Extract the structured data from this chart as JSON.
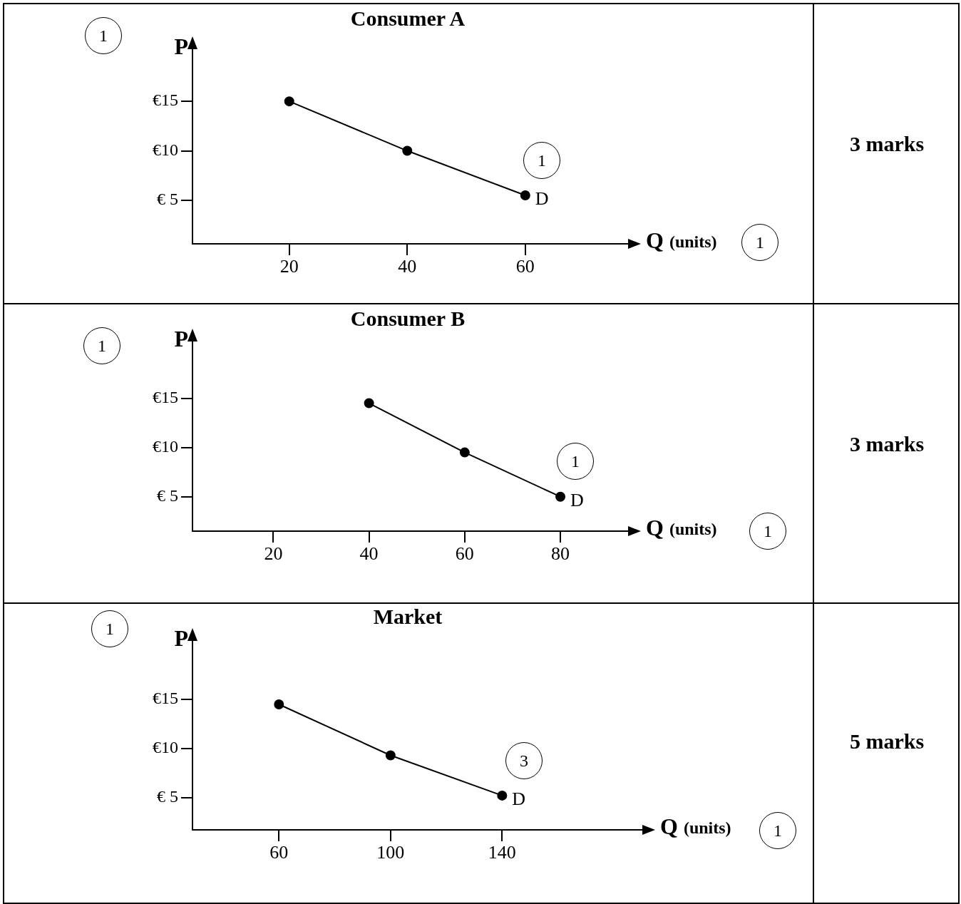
{
  "chart_data": [
    {
      "type": "line",
      "title": "Consumer A",
      "xlabel": "Q (units)",
      "ylabel": "P",
      "x": [
        20,
        40,
        60
      ],
      "series": [
        {
          "color": "#000000",
          "values": [
            15,
            10,
            5.5
          ]
        }
      ],
      "xlim": [
        3.6,
        77.3
      ],
      "ylim": [
        0.6,
        20.2
      ],
      "xticks": [
        20,
        40,
        60
      ],
      "yticks": [
        {
          "value": 5,
          "label": "€ 5"
        },
        {
          "value": 10,
          "label": "€10"
        },
        {
          "value": 15,
          "label": "€15"
        }
      ],
      "marker": "circle",
      "legend": false,
      "annotations": [
        "1",
        {
          "text": "D",
          "x": 60,
          "y": 5.5
        },
        "1",
        "1",
        "3 marks"
      ]
    },
    {
      "type": "line",
      "title": "Consumer B",
      "xlabel": "Q (units)",
      "ylabel": "P",
      "x": [
        40,
        60,
        80
      ],
      "series": [
        {
          "color": "#000000",
          "values": [
            14.5,
            9.5,
            5
          ]
        }
      ],
      "xlim": [
        3.1,
        94
      ],
      "ylim": [
        1.5,
        20.7
      ],
      "xticks": [
        20,
        40,
        60,
        80
      ],
      "yticks": [
        {
          "value": 5,
          "label": "€ 5"
        },
        {
          "value": 10,
          "label": "€10"
        },
        {
          "value": 15,
          "label": "€15"
        }
      ],
      "marker": "circle",
      "legend": false,
      "annotations": [
        "1",
        {
          "text": "D",
          "x": 80,
          "y": 5
        },
        "1",
        "1",
        "3 marks"
      ]
    },
    {
      "type": "line",
      "title": "Market",
      "xlabel": "Q (units)",
      "ylabel": "P",
      "x": [
        60,
        100,
        140
      ],
      "series": [
        {
          "color": "#000000",
          "values": [
            14.5,
            9.3,
            5.2
          ]
        }
      ],
      "xlim": [
        29,
        190
      ],
      "ylim": [
        1.7,
        20.9
      ],
      "xticks": [
        60,
        100,
        140
      ],
      "yticks": [
        {
          "value": 5,
          "label": "€ 5"
        },
        {
          "value": 10,
          "label": "€10"
        },
        {
          "value": 15,
          "label": "€15"
        }
      ],
      "marker": "circle",
      "legend": false,
      "annotations": [
        "1",
        {
          "text": "D",
          "x": 140,
          "y": 5.2
        },
        "3",
        "1",
        "5 marks"
      ]
    }
  ]
}
